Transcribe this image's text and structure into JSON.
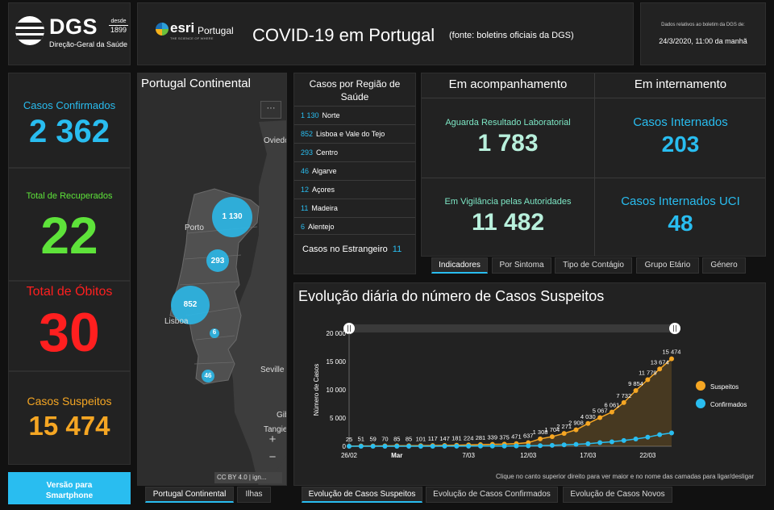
{
  "header": {
    "logo_main": "DGS",
    "logo_desde": "desde",
    "logo_year": "1899",
    "logo_sub": "Direção-Geral da Saúde",
    "esri_name": "esri",
    "esri_country": "Portugal",
    "esri_tag": "THE SCIENCE OF WHERE",
    "title": "COVID-19 em Portugal",
    "source": "(fonte: boletins oficiais da DGS)",
    "date_label": "Dados relativos ao boletim da DGS de:",
    "date_value": "24/3/2020, 11:00 da manhã"
  },
  "stats": {
    "confirmed_label": "Casos Confirmados",
    "confirmed_value": "2 362",
    "recovered_label": "Total de Recuperados",
    "recovered_value": "22",
    "deaths_label": "Total de Óbitos",
    "deaths_value": "30",
    "suspected_label": "Casos Suspeitos",
    "suspected_value": "15 474",
    "colors": {
      "confirmed": "#29bdf0",
      "recovered": "#5ee33a",
      "deaths": "#ff1f1f",
      "suspected": "#f5a623"
    }
  },
  "mobile_button": {
    "line1": "Versão para",
    "line2": "Smartphone"
  },
  "map": {
    "title": "Portugal Continental",
    "menu": "···",
    "places": {
      "oviedo": "Oviedo",
      "porto": "Porto",
      "lisboa": "Lisboa",
      "seville": "Seville",
      "gib": "Gib",
      "tangier": "Tangie"
    },
    "bubbles": [
      "1 130",
      "293",
      "852",
      "6",
      "46"
    ],
    "zoom_in": "+",
    "zoom_out": "−",
    "attribution": "CC BY 4.0 | ign...",
    "tabs": [
      "Portugal Continental",
      "Ilhas"
    ]
  },
  "regions": {
    "title": "Casos por Região de Saúde",
    "rows": [
      {
        "count": "1 130",
        "name": "Norte"
      },
      {
        "count": "852",
        "name": "Lisboa e Vale do Tejo"
      },
      {
        "count": "293",
        "name": "Centro"
      },
      {
        "count": "46",
        "name": "Algarve"
      },
      {
        "count": "12",
        "name": "Açores"
      },
      {
        "count": "11",
        "name": "Madeira"
      },
      {
        "count": "6",
        "name": "Alentejo"
      }
    ],
    "abroad_label": "Casos no Estrangeiro",
    "abroad_count": "11"
  },
  "monitoring": {
    "head_left": "Em acompanhamento",
    "head_right": "Em internamento",
    "lab_label": "Aguarda Resultado Laboratorial",
    "lab_value": "1 783",
    "vigil_label": "Em Vigilância pelas Autoridades",
    "vigil_value": "11 482",
    "hosp_label": "Casos Internados",
    "hosp_value": "203",
    "icu_label": "Casos Internados UCI",
    "icu_value": "48",
    "tabs": [
      "Indicadores",
      "Por Sintoma",
      "Tipo de Contágio",
      "Grupo Etário",
      "Género"
    ]
  },
  "chart": {
    "title": "Evolução diária do número de Casos Suspeitos",
    "hint": "Clique no canto superior direito para ver maior e no nome das camadas para ligar/desligar",
    "tabs": [
      "Evolução de Casos Suspeitos",
      "Evolução de Casos Confirmados",
      "Evolução de Casos Novos"
    ]
  },
  "chart_data": {
    "type": "line",
    "title": "Evolução diária do número de Casos Suspeitos",
    "xlabel": "",
    "ylabel": "Número de Casos",
    "ylim": [
      0,
      20000
    ],
    "yticks": [
      "0",
      "5 000",
      "10 000",
      "15 000",
      "20 000"
    ],
    "yticks_values": [
      0,
      5000,
      10000,
      15000,
      20000
    ],
    "xticks": [
      "26/02",
      "Mar",
      "7/03",
      "12/03",
      "17/03",
      "22/03"
    ],
    "xticks_dates": [
      "2020-02-26",
      "2020-03-01",
      "2020-03-07",
      "2020-03-12",
      "2020-03-17",
      "2020-03-22"
    ],
    "x": [
      "2020-02-26",
      "2020-02-27",
      "2020-02-28",
      "2020-02-29",
      "2020-03-01",
      "2020-03-02",
      "2020-03-03",
      "2020-03-04",
      "2020-03-05",
      "2020-03-06",
      "2020-03-07",
      "2020-03-08",
      "2020-03-09",
      "2020-03-10",
      "2020-03-11",
      "2020-03-12",
      "2020-03-13",
      "2020-03-14",
      "2020-03-15",
      "2020-03-16",
      "2020-03-17",
      "2020-03-18",
      "2020-03-19",
      "2020-03-20",
      "2020-03-21",
      "2020-03-22",
      "2020-03-23",
      "2020-03-24"
    ],
    "legend_position": "right",
    "grid": false,
    "series": [
      {
        "name": "Suspeitos",
        "color": "#f5a623",
        "values": [
          25,
          51,
          59,
          70,
          85,
          85,
          101,
          117,
          147,
          181,
          224,
          281,
          339,
          375,
          471,
          637,
          1308,
          1704,
          2271,
          2908,
          4030,
          5067,
          6061,
          7732,
          9854,
          11779,
          13674,
          15474
        ],
        "labels": [
          "25",
          "51",
          "59",
          "70",
          "85",
          "85",
          "101",
          "117",
          "147",
          "181",
          "224",
          "281",
          "339",
          "375",
          "471",
          "637",
          "1 308",
          "1 704",
          "2 271",
          "2 908",
          "4 030",
          "5 067",
          "6 061",
          "7 732",
          "9 854",
          "11 779",
          "13 674",
          "15 474"
        ]
      },
      {
        "name": "Confirmados",
        "color": "#29bdf0",
        "values": [
          0,
          0,
          0,
          0,
          0,
          2,
          4,
          6,
          9,
          13,
          21,
          30,
          39,
          41,
          59,
          78,
          112,
          169,
          245,
          331,
          448,
          642,
          785,
          1020,
          1280,
          1600,
          2060,
          2362
        ],
        "labels": []
      }
    ]
  }
}
